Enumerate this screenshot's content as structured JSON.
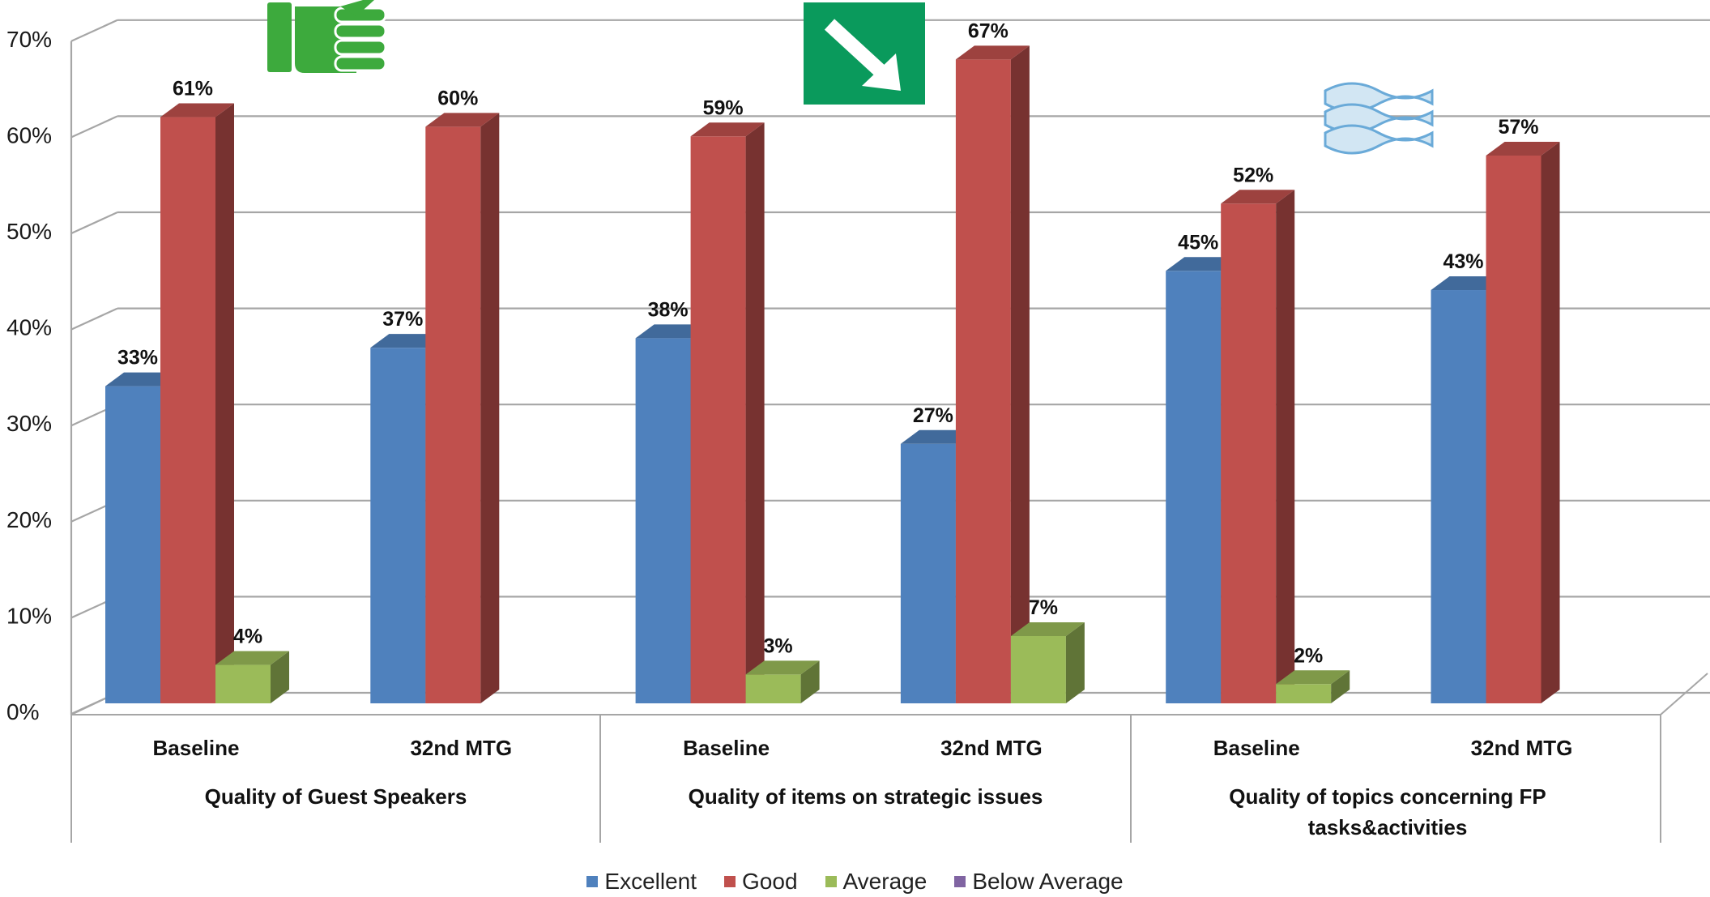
{
  "chart_data": {
    "type": "bar",
    "title": "",
    "xlabel": "",
    "ylabel": "",
    "ylim": [
      0,
      70
    ],
    "y_ticks": [
      "0%",
      "10%",
      "20%",
      "30%",
      "40%",
      "50%",
      "60%",
      "70%"
    ],
    "grid": true,
    "legend_position": "bottom",
    "groups": [
      {
        "label_lines": [
          "Quality of Guest Speakers"
        ]
      },
      {
        "label_lines": [
          "Quality of items on strategic issues"
        ]
      },
      {
        "label_lines": [
          "Quality of topics concerning FP",
          "tasks&activities"
        ]
      }
    ],
    "categories": [
      "Baseline",
      "32nd  MTG",
      "Baseline",
      "32nd MTG",
      "Baseline",
      "32nd MTG"
    ],
    "series": [
      {
        "name": "Excellent",
        "color": "#4F81BD",
        "values": [
          33,
          37,
          38,
          27,
          45,
          43
        ],
        "labels": [
          "33%",
          "37%",
          "38%",
          "27%",
          "45%",
          "43%"
        ]
      },
      {
        "name": "Good",
        "color": "#C0504D",
        "values": [
          61,
          60,
          59,
          67,
          52,
          57
        ],
        "labels": [
          "61%",
          "60%",
          "59%",
          "67%",
          "52%",
          "57%"
        ]
      },
      {
        "name": "Average",
        "color": "#9BBB59",
        "values": [
          4,
          0,
          3,
          7,
          2,
          0
        ],
        "labels": [
          "4%",
          "",
          "3%",
          "7%",
          "2%",
          ""
        ]
      },
      {
        "name": "Below Average",
        "color": "#8064A2",
        "values": [
          0,
          0,
          0,
          0,
          0,
          0
        ],
        "labels": [
          "",
          "",
          "",
          "",
          "",
          ""
        ]
      }
    ],
    "annotations": [
      {
        "icon": "thumbs-up-icon",
        "group": 0,
        "color": "#3DAA3D"
      },
      {
        "icon": "down-right-arrow-icon",
        "group": 1,
        "color": "#0A9A5C"
      },
      {
        "icon": "approximately-equal-icon",
        "group": 2,
        "color": "#6AAAD8"
      }
    ]
  }
}
